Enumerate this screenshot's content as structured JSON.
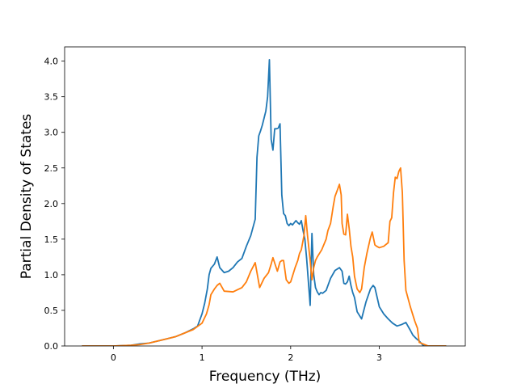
{
  "chart_data": {
    "type": "line",
    "title": "",
    "xlabel": "Frequency (THz)",
    "ylabel": "Partial Density of States",
    "xlim": [
      -0.55,
      3.97
    ],
    "ylim": [
      0,
      4.2
    ],
    "xticks": [
      0,
      1,
      2,
      3
    ],
    "yticks": [
      0.0,
      0.5,
      1.0,
      1.5,
      2.0,
      2.5,
      3.0,
      3.5,
      4.0
    ],
    "ytick_labels": [
      "0.0",
      "0.5",
      "1.0",
      "1.5",
      "2.0",
      "2.5",
      "3.0",
      "3.5",
      "4.0"
    ],
    "grid": false,
    "legend": "none",
    "series": [
      {
        "color": "#1f77b4",
        "x": [
          -0.35,
          0.0,
          0.2,
          0.3,
          0.4,
          0.5,
          0.6,
          0.7,
          0.8,
          0.9,
          0.95,
          1.0,
          1.03,
          1.06,
          1.08,
          1.1,
          1.14,
          1.17,
          1.2,
          1.25,
          1.3,
          1.35,
          1.4,
          1.45,
          1.5,
          1.55,
          1.6,
          1.62,
          1.64,
          1.66,
          1.68,
          1.7,
          1.72,
          1.74,
          1.76,
          1.78,
          1.8,
          1.82,
          1.84,
          1.86,
          1.88,
          1.9,
          1.92,
          1.94,
          1.96,
          1.98,
          2.0,
          2.02,
          2.04,
          2.06,
          2.08,
          2.1,
          2.12,
          2.14,
          2.16,
          2.18,
          2.2,
          2.22,
          2.24,
          2.26,
          2.28,
          2.3,
          2.32,
          2.34,
          2.36,
          2.4,
          2.45,
          2.5,
          2.55,
          2.58,
          2.6,
          2.62,
          2.64,
          2.66,
          2.68,
          2.7,
          2.72,
          2.75,
          2.8,
          2.85,
          2.9,
          2.93,
          2.95,
          3.0,
          3.05,
          3.1,
          3.15,
          3.2,
          3.25,
          3.3,
          3.35,
          3.38,
          3.42,
          3.45,
          3.5,
          3.6,
          3.75
        ],
        "y": [
          0.0,
          0.0,
          0.01,
          0.03,
          0.04,
          0.07,
          0.1,
          0.13,
          0.18,
          0.24,
          0.28,
          0.45,
          0.6,
          0.8,
          1.0,
          1.09,
          1.15,
          1.25,
          1.1,
          1.03,
          1.05,
          1.1,
          1.18,
          1.23,
          1.4,
          1.55,
          1.78,
          2.65,
          2.95,
          3.02,
          3.1,
          3.2,
          3.3,
          3.5,
          4.02,
          2.9,
          2.75,
          3.05,
          3.05,
          3.06,
          3.12,
          2.12,
          1.86,
          1.83,
          1.72,
          1.69,
          1.72,
          1.7,
          1.73,
          1.76,
          1.73,
          1.71,
          1.76,
          1.62,
          1.5,
          1.23,
          0.9,
          0.57,
          1.58,
          1.0,
          0.82,
          0.76,
          0.72,
          0.75,
          0.74,
          0.78,
          0.95,
          1.06,
          1.1,
          1.05,
          0.88,
          0.87,
          0.9,
          0.98,
          0.85,
          0.75,
          0.68,
          0.48,
          0.38,
          0.62,
          0.8,
          0.85,
          0.82,
          0.55,
          0.45,
          0.38,
          0.32,
          0.28,
          0.3,
          0.33,
          0.22,
          0.15,
          0.1,
          0.07,
          0.0,
          0.0,
          0.0
        ]
      },
      {
        "color": "#ff7f0e",
        "x": [
          -0.35,
          0.0,
          0.2,
          0.3,
          0.4,
          0.5,
          0.6,
          0.7,
          0.8,
          0.9,
          1.0,
          1.05,
          1.08,
          1.1,
          1.14,
          1.17,
          1.2,
          1.25,
          1.35,
          1.45,
          1.5,
          1.55,
          1.6,
          1.65,
          1.7,
          1.75,
          1.78,
          1.8,
          1.85,
          1.88,
          1.9,
          1.92,
          1.95,
          1.98,
          2.0,
          2.05,
          2.08,
          2.1,
          2.12,
          2.15,
          2.17,
          2.19,
          2.22,
          2.24,
          2.26,
          2.28,
          2.3,
          2.35,
          2.4,
          2.42,
          2.45,
          2.48,
          2.5,
          2.53,
          2.55,
          2.57,
          2.58,
          2.6,
          2.62,
          2.64,
          2.66,
          2.68,
          2.7,
          2.72,
          2.75,
          2.78,
          2.8,
          2.83,
          2.86,
          2.9,
          2.92,
          2.94,
          2.95,
          2.97,
          3.0,
          3.05,
          3.1,
          3.12,
          3.14,
          3.16,
          3.18,
          3.2,
          3.22,
          3.24,
          3.26,
          3.28,
          3.3,
          3.35,
          3.4,
          3.43,
          3.45,
          3.55,
          3.75
        ],
        "y": [
          0.0,
          0.0,
          0.01,
          0.02,
          0.04,
          0.07,
          0.1,
          0.13,
          0.18,
          0.23,
          0.32,
          0.45,
          0.58,
          0.72,
          0.8,
          0.85,
          0.88,
          0.77,
          0.76,
          0.82,
          0.9,
          1.05,
          1.17,
          0.82,
          0.95,
          1.03,
          1.15,
          1.24,
          1.05,
          1.18,
          1.2,
          1.2,
          0.93,
          0.88,
          0.9,
          1.1,
          1.2,
          1.3,
          1.35,
          1.55,
          1.83,
          1.55,
          1.2,
          0.93,
          1.1,
          1.2,
          1.25,
          1.35,
          1.5,
          1.62,
          1.72,
          1.96,
          2.1,
          2.2,
          2.27,
          2.12,
          1.72,
          1.57,
          1.56,
          1.85,
          1.65,
          1.4,
          1.25,
          0.98,
          0.8,
          0.75,
          0.8,
          1.1,
          1.3,
          1.52,
          1.6,
          1.48,
          1.42,
          1.4,
          1.38,
          1.4,
          1.45,
          1.75,
          1.8,
          2.15,
          2.37,
          2.35,
          2.45,
          2.5,
          2.15,
          1.2,
          0.78,
          0.55,
          0.35,
          0.25,
          0.05,
          0.0,
          0.0
        ]
      }
    ]
  }
}
